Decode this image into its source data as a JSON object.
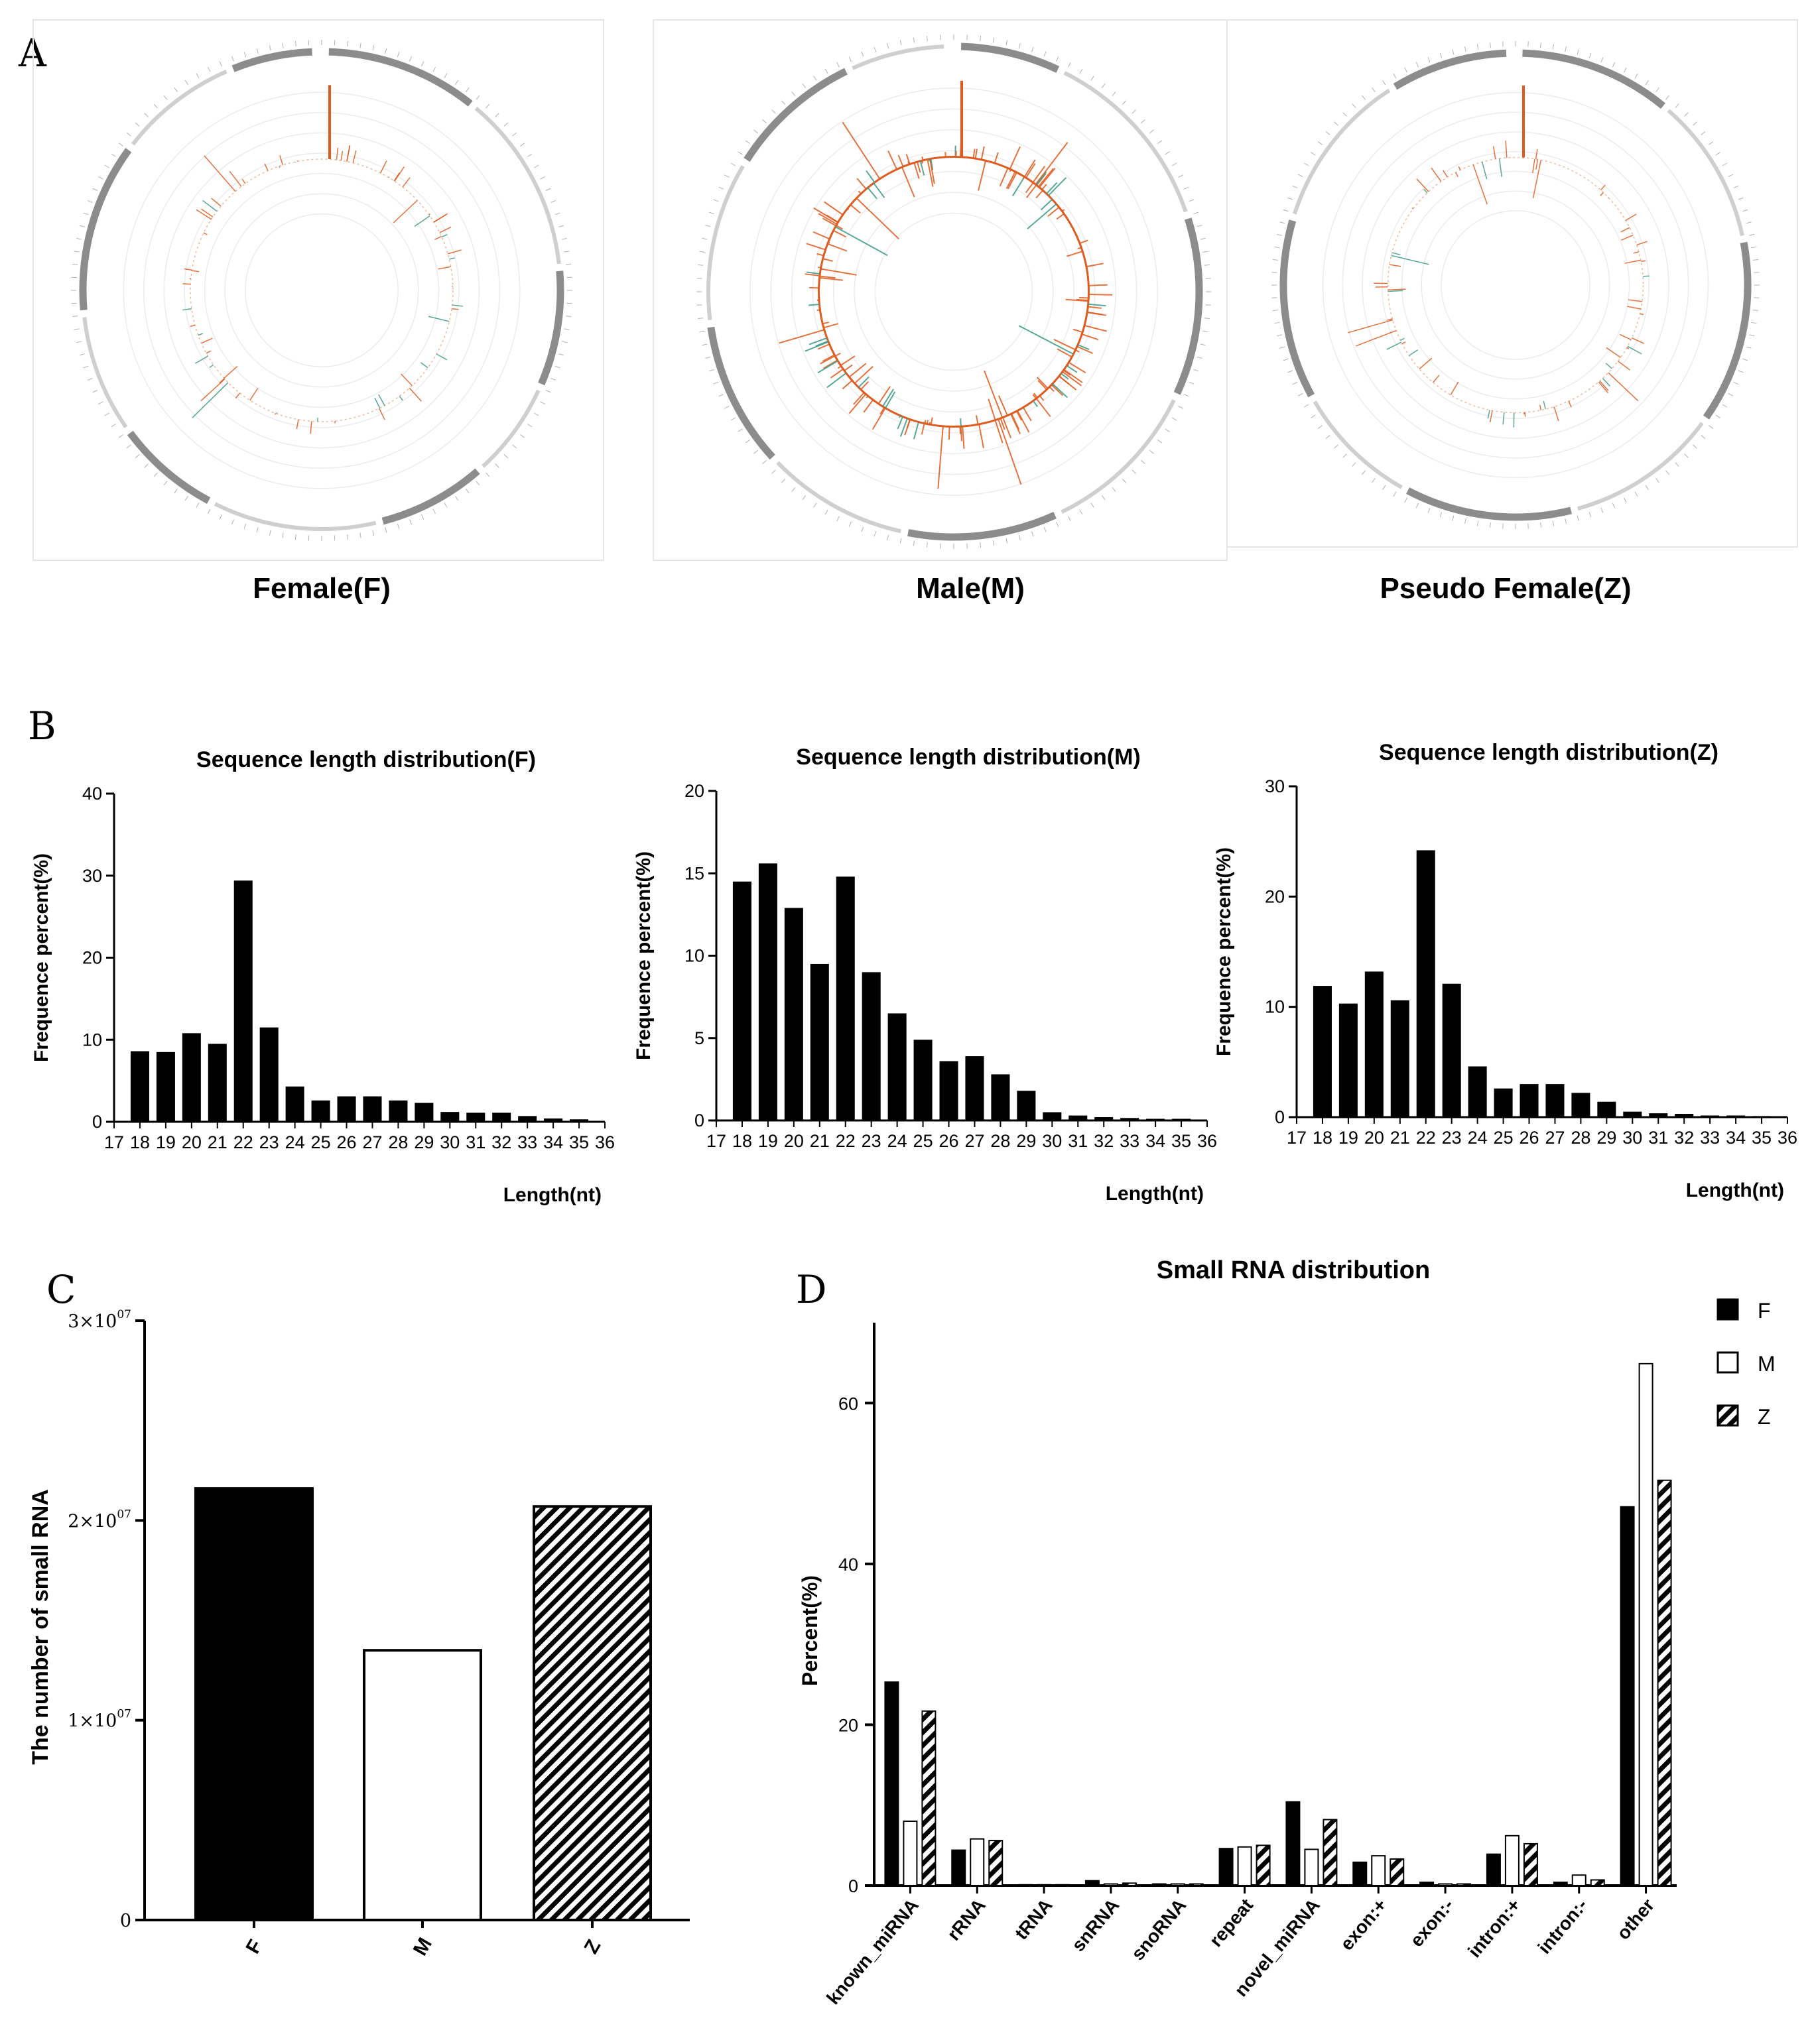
{
  "panel_labels": [
    "A",
    "B",
    "C",
    "D"
  ],
  "colors": {
    "bar": "#000000",
    "axis": "#000000",
    "circos_track": "#8c8c8c",
    "circos_track_light": "#cfcfcf",
    "circos_peak": "#e05a1e",
    "circos_peak_alt": "#3a9a86",
    "frame": "#e6e6e6"
  },
  "circos_panels": [
    {
      "label": "Female(F)",
      "peak_density": "low"
    },
    {
      "label": "Male(M)",
      "peak_density": "high"
    },
    {
      "label": "Pseudo Female(Z)",
      "peak_density": "low"
    }
  ],
  "chart_data": [
    {
      "id": "B-F",
      "type": "bar",
      "title": "Sequence length distribution(F)",
      "xlabel": "Length(nt)",
      "ylabel": "Frequence percent(%)",
      "ylim": [
        0,
        40
      ],
      "yticks": [
        0,
        10,
        20,
        30,
        40
      ],
      "xticks": [
        "17",
        "18",
        "19",
        "20",
        "21",
        "22",
        "23",
        "24",
        "25",
        "26",
        "27",
        "28",
        "29",
        "30",
        "31",
        "32",
        "33",
        "34",
        "35",
        "36"
      ],
      "categories": [
        "18",
        "19",
        "20",
        "21",
        "22",
        "23",
        "24",
        "25",
        "26",
        "27",
        "28",
        "29",
        "30",
        "31",
        "32",
        "33",
        "34",
        "35"
      ],
      "values": [
        8.6,
        8.5,
        10.8,
        9.5,
        29.4,
        11.5,
        4.3,
        2.6,
        3.1,
        3.1,
        2.6,
        2.3,
        1.2,
        1.1,
        1.1,
        0.7,
        0.4,
        0.3
      ]
    },
    {
      "id": "B-M",
      "type": "bar",
      "title": "Sequence length distribution(M)",
      "xlabel": "Length(nt)",
      "ylabel": "Frequence percent(%)",
      "ylim": [
        0,
        20
      ],
      "yticks": [
        0,
        5,
        10,
        15,
        20
      ],
      "xticks": [
        "17",
        "18",
        "19",
        "20",
        "21",
        "22",
        "23",
        "24",
        "25",
        "26",
        "27",
        "28",
        "29",
        "30",
        "31",
        "32",
        "33",
        "34",
        "35",
        "36"
      ],
      "categories": [
        "18",
        "19",
        "20",
        "21",
        "22",
        "23",
        "24",
        "25",
        "26",
        "27",
        "28",
        "29",
        "30",
        "31",
        "32",
        "33",
        "34",
        "35"
      ],
      "values": [
        14.5,
        15.6,
        12.9,
        9.5,
        14.8,
        9.0,
        6.5,
        4.9,
        3.6,
        3.9,
        2.8,
        1.8,
        0.5,
        0.3,
        0.2,
        0.15,
        0.1,
        0.1
      ]
    },
    {
      "id": "B-Z",
      "type": "bar",
      "title": "Sequence length distribution(Z)",
      "xlabel": "Length(nt)",
      "ylabel": "Frequence percent(%)",
      "ylim": [
        0,
        30
      ],
      "yticks": [
        0,
        10,
        20,
        30
      ],
      "xticks": [
        "17",
        "18",
        "19",
        "20",
        "21",
        "22",
        "23",
        "24",
        "25",
        "26",
        "27",
        "28",
        "29",
        "30",
        "31",
        "32",
        "33",
        "34",
        "35",
        "36"
      ],
      "categories": [
        "18",
        "19",
        "20",
        "21",
        "22",
        "23",
        "24",
        "25",
        "26",
        "27",
        "28",
        "29",
        "30",
        "31",
        "32",
        "33",
        "34",
        "35"
      ],
      "values": [
        11.9,
        10.3,
        13.2,
        10.6,
        24.2,
        12.1,
        4.6,
        2.6,
        3.0,
        3.0,
        2.2,
        1.4,
        0.5,
        0.35,
        0.3,
        0.15,
        0.15,
        0.1
      ]
    },
    {
      "id": "C",
      "type": "bar",
      "title": "",
      "xlabel": "",
      "ylabel": "The number of small RNA",
      "ylim": [
        0,
        30000000
      ],
      "yticks": [
        0,
        10000000,
        20000000,
        30000000
      ],
      "ytick_labels": [
        {
          "base": "0",
          "exp": ""
        },
        {
          "base": "1×10",
          "exp": "07"
        },
        {
          "base": "2×10",
          "exp": "07"
        },
        {
          "base": "3×10",
          "exp": "07"
        }
      ],
      "categories": [
        "F",
        "M",
        "Z"
      ],
      "values": [
        21600000,
        13500000,
        20700000
      ],
      "styles": [
        "solid",
        "open",
        "hatched"
      ]
    },
    {
      "id": "D",
      "type": "bar",
      "title": "Small RNA distribution",
      "xlabel": "",
      "ylabel": "Percent(%)",
      "ylim": [
        0,
        70
      ],
      "yticks": [
        0,
        20,
        40,
        60
      ],
      "categories": [
        "known_miRNA",
        "rRNA",
        "tRNA",
        "snRNA",
        "snoRNA",
        "repeat",
        "novel_miRNA",
        "exon:+",
        "exon:-",
        "intron:+",
        "intron:-",
        "other"
      ],
      "legend": [
        "F",
        "M",
        "Z"
      ],
      "legend_position": "top-right",
      "series": [
        {
          "name": "F",
          "style": "solid",
          "values": [
            25.3,
            4.4,
            0.1,
            0.6,
            0.2,
            4.6,
            10.4,
            2.9,
            0.4,
            3.9,
            0.4,
            47.1
          ]
        },
        {
          "name": "M",
          "style": "open",
          "values": [
            8.0,
            5.8,
            0.1,
            0.2,
            0.2,
            4.8,
            4.5,
            3.7,
            0.2,
            6.2,
            1.3,
            64.9
          ]
        },
        {
          "name": "Z",
          "style": "hatched",
          "values": [
            21.7,
            5.6,
            0.1,
            0.3,
            0.2,
            5.0,
            8.2,
            3.3,
            0.2,
            5.2,
            0.7,
            50.4
          ]
        }
      ]
    }
  ]
}
